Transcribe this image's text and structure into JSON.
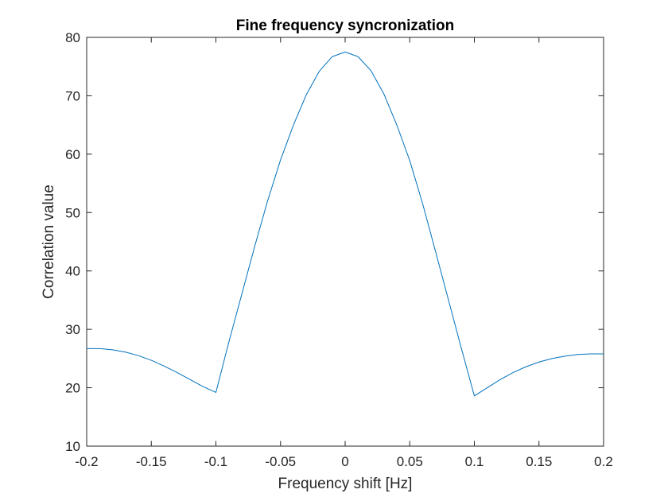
{
  "chart_data": {
    "type": "line",
    "title": "Fine frequency syncronization",
    "xlabel": "Frequency shift [Hz]",
    "ylabel": "Correlation value",
    "xlim": [
      -0.2,
      0.2
    ],
    "ylim": [
      10,
      80
    ],
    "xticks": [
      -0.2,
      -0.15,
      -0.1,
      -0.05,
      0,
      0.05,
      0.1,
      0.15,
      0.2
    ],
    "xtick_labels": [
      "-0.2",
      "-0.15",
      "-0.1",
      "-0.05",
      "0",
      "0.05",
      "0.1",
      "0.15",
      "0.2"
    ],
    "yticks": [
      10,
      20,
      30,
      40,
      50,
      60,
      70,
      80
    ],
    "ytick_labels": [
      "10",
      "20",
      "30",
      "40",
      "50",
      "60",
      "70",
      "80"
    ],
    "grid": false,
    "series": [
      {
        "color": "#0072bd",
        "x": [
          -0.2,
          -0.19,
          -0.18,
          -0.17,
          -0.16,
          -0.15,
          -0.14,
          -0.13,
          -0.12,
          -0.11,
          -0.1,
          -0.09,
          -0.08,
          -0.07,
          -0.06,
          -0.05,
          -0.04,
          -0.03,
          -0.02,
          -0.01,
          0,
          0.01,
          0.02,
          0.03,
          0.04,
          0.05,
          0.06,
          0.07,
          0.08,
          0.09,
          0.1,
          0.11,
          0.12,
          0.13,
          0.14,
          0.15,
          0.16,
          0.17,
          0.18,
          0.19,
          0.2
        ],
        "y": [
          26.7,
          26.7,
          26.5,
          26.1,
          25.5,
          24.7,
          23.7,
          22.6,
          21.4,
          20.2,
          19.2,
          27.8,
          36.0,
          44.2,
          52.0,
          59.0,
          65.0,
          70.2,
          74.2,
          76.7,
          77.5,
          76.7,
          74.3,
          70.3,
          65.0,
          58.9,
          51.5,
          43.3,
          35.0,
          26.7,
          18.6,
          20.0,
          21.4,
          22.6,
          23.6,
          24.4,
          25.0,
          25.4,
          25.7,
          25.8,
          25.8
        ]
      }
    ]
  }
}
